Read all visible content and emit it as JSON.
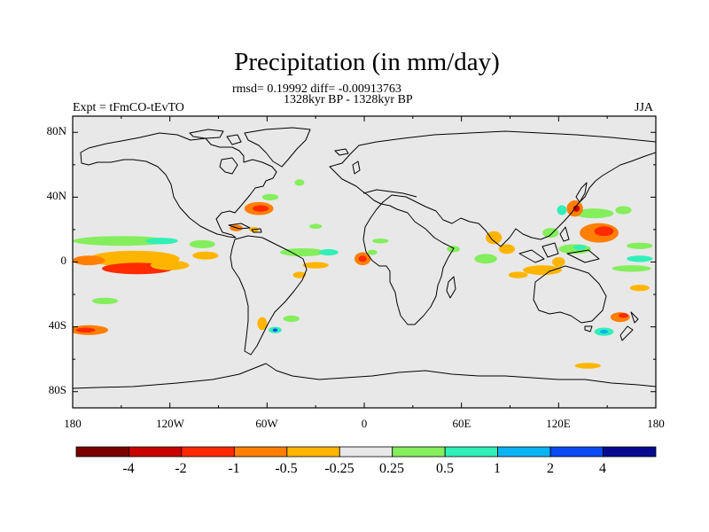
{
  "title": "Precipitation (in mm/day)",
  "stats_line": "rmsd= 0.19992 diff= -0.00913763",
  "period_line": "1328kyr BP - 1328kyr BP",
  "experiment": "Expt = tFmCO-tEvTO",
  "season": "JJA",
  "lat_ticks": [
    "80N",
    "40N",
    "0",
    "40S",
    "80S"
  ],
  "lon_ticks": [
    "180",
    "120W",
    "60W",
    "0",
    "60E",
    "120E",
    "180"
  ],
  "colorbar": {
    "colors": [
      "#7a0000",
      "#c80000",
      "#ff2a00",
      "#ff7f00",
      "#ffb500",
      "#e8e8e8",
      "#84ee5c",
      "#30f0b8",
      "#0ab4f4",
      "#0a4af4",
      "#050a90"
    ],
    "labels": [
      "-4",
      "-2",
      "-1",
      "-0.5",
      "-0.25",
      "0.25",
      "0.5",
      "1",
      "2",
      "4"
    ]
  },
  "map_data": {
    "extent": {
      "lon": [
        -180,
        180
      ],
      "lat": [
        -90,
        90
      ]
    },
    "background": "#e8e8e8",
    "anomalies": [
      {
        "name": "tropical-pacific-dry-band",
        "lon": -142,
        "lat": 2,
        "rlon": 28,
        "rlat": 5,
        "level": 4
      },
      {
        "name": "tropical-pacific-dry-core",
        "lon": -140,
        "lat": -4,
        "rlon": 22,
        "rlat": 3.5,
        "level": 2
      },
      {
        "name": "central-pacific-dry",
        "lon": -120,
        "lat": -2,
        "rlon": 12,
        "rlat": 3,
        "level": 4
      },
      {
        "name": "equatorial-pacific-dry-west",
        "lon": -170,
        "lat": 1,
        "rlon": 10,
        "rlat": 3,
        "level": 3
      },
      {
        "name": "pacific-itcz-wet",
        "lon": -150,
        "lat": 13,
        "rlon": 30,
        "rlat": 3,
        "level": 6
      },
      {
        "name": "pacific-itcz-wet-core",
        "lon": -125,
        "lat": 13,
        "rlon": 10,
        "rlat": 2,
        "level": 7
      },
      {
        "name": "pacific-itcz-wet-east",
        "lon": -100,
        "lat": 11,
        "rlon": 8,
        "rlat": 2.5,
        "level": 6
      },
      {
        "name": "east-pacific-dry",
        "lon": -98,
        "lat": 4,
        "rlon": 8,
        "rlat": 2.5,
        "level": 4
      },
      {
        "name": "gulf-stream-dry",
        "lon": -65,
        "lat": 33,
        "rlon": 9,
        "rlat": 4,
        "level": 3
      },
      {
        "name": "gulf-stream-dry-core",
        "lon": -64,
        "lat": 33,
        "rlon": 5,
        "rlat": 2,
        "level": 2
      },
      {
        "name": "gulf-stream-wet",
        "lon": -58,
        "lat": 40,
        "rlon": 5,
        "rlat": 2,
        "level": 6
      },
      {
        "name": "caribbean-dry",
        "lon": -79,
        "lat": 21,
        "rlon": 4,
        "rlat": 2,
        "level": 3
      },
      {
        "name": "caribbean-dry-2",
        "lon": -68,
        "lat": 20,
        "rlon": 3,
        "rlat": 1.6,
        "level": 4
      },
      {
        "name": "atlantic-itcz-wet",
        "lon": -38,
        "lat": 6,
        "rlon": 14,
        "rlat": 2.5,
        "level": 6
      },
      {
        "name": "atlantic-itcz-wet-east",
        "lon": -22,
        "lat": 6,
        "rlon": 6,
        "rlat": 2,
        "level": 7
      },
      {
        "name": "atlantic-dry",
        "lon": -30,
        "lat": -2,
        "rlon": 8,
        "rlat": 2,
        "level": 4
      },
      {
        "name": "gulf-of-guinea-dry",
        "lon": -1,
        "lat": 2,
        "rlon": 5,
        "rlat": 4,
        "level": 3
      },
      {
        "name": "gulf-of-guinea-dry-core",
        "lon": -1,
        "lat": 2,
        "rlon": 2.5,
        "rlat": 2,
        "level": 2
      },
      {
        "name": "gulf-of-guinea-wet",
        "lon": 5,
        "lat": 6,
        "rlon": 3,
        "rlat": 1.6,
        "level": 6
      },
      {
        "name": "south-atlantic-dry",
        "lon": -63,
        "lat": -38,
        "rlon": 3,
        "rlat": 4,
        "level": 4
      },
      {
        "name": "south-atlantic-wet",
        "lon": -55,
        "lat": -42,
        "rlon": 4,
        "rlat": 2,
        "level": 7
      },
      {
        "name": "south-atlantic-wet-core",
        "lon": -55,
        "lat": -42,
        "rlon": 1.5,
        "rlat": 1,
        "level": 9
      },
      {
        "name": "south-atlantic-wet-2",
        "lon": -45,
        "lat": -35,
        "rlon": 5,
        "rlat": 2,
        "level": 6
      },
      {
        "name": "southeast-pacific-dry",
        "lon": -170,
        "lat": -42,
        "rlon": 12,
        "rlat": 3,
        "level": 3
      },
      {
        "name": "southeast-pacific-dry-core",
        "lon": -172,
        "lat": -42,
        "rlon": 6,
        "rlat": 1.5,
        "level": 2
      },
      {
        "name": "subtropical-pacific-wet",
        "lon": -160,
        "lat": -24,
        "rlon": 8,
        "rlat": 2,
        "level": 6
      },
      {
        "name": "indian-ocean-dry",
        "lon": 80,
        "lat": 15,
        "rlon": 5,
        "rlat": 4,
        "level": 4
      },
      {
        "name": "bay-of-bengal-dry",
        "lon": 88,
        "lat": 8,
        "rlon": 5,
        "rlat": 3,
        "level": 4
      },
      {
        "name": "indian-ocean-wet",
        "lon": 75,
        "lat": 2,
        "rlon": 7,
        "rlat": 3,
        "level": 6
      },
      {
        "name": "indian-ocean-wet-2",
        "lon": 55,
        "lat": 8,
        "rlon": 4,
        "rlat": 2,
        "level": 6
      },
      {
        "name": "south-indian-dry",
        "lon": 110,
        "lat": -5,
        "rlon": 12,
        "rlat": 3,
        "level": 4
      },
      {
        "name": "south-indian-dry-2",
        "lon": 95,
        "lat": -8,
        "rlon": 6,
        "rlat": 2,
        "level": 4
      },
      {
        "name": "west-pacific-dry",
        "lon": 145,
        "lat": 18,
        "rlon": 12,
        "rlat": 6,
        "level": 3
      },
      {
        "name": "west-pacific-dry-core",
        "lon": 148,
        "lat": 19,
        "rlon": 6,
        "rlat": 3,
        "level": 2
      },
      {
        "name": "west-pacific-wet",
        "lon": 142,
        "lat": 30,
        "rlon": 12,
        "rlat": 3,
        "level": 6
      },
      {
        "name": "west-pacific-wet-2",
        "lon": 160,
        "lat": 32,
        "rlon": 5,
        "rlat": 2.5,
        "level": 6
      },
      {
        "name": "japan-dry",
        "lon": 130,
        "lat": 33,
        "rlon": 5,
        "rlat": 5,
        "level": 3
      },
      {
        "name": "japan-dry-core",
        "lon": 131,
        "lat": 33,
        "rlon": 2,
        "rlat": 2,
        "level": 1
      },
      {
        "name": "east-china-wet",
        "lon": 122,
        "lat": 32,
        "rlon": 3,
        "rlat": 3,
        "level": 7
      },
      {
        "name": "south-china-sea-wet",
        "lon": 115,
        "lat": 18,
        "rlon": 5,
        "rlat": 3,
        "level": 6
      },
      {
        "name": "maritime-wet",
        "lon": 130,
        "lat": 8,
        "rlon": 10,
        "rlat": 3,
        "level": 6
      },
      {
        "name": "maritime-wet-core",
        "lon": 133,
        "lat": 9,
        "rlon": 4,
        "rlat": 1.5,
        "level": 7
      },
      {
        "name": "maritime-dry",
        "lon": 120,
        "lat": 0,
        "rlon": 4,
        "rlat": 3,
        "level": 4
      },
      {
        "name": "tasman-dry",
        "lon": 158,
        "lat": -34,
        "rlon": 6,
        "rlat": 3,
        "level": 3
      },
      {
        "name": "tasman-dry-core",
        "lon": 160,
        "lat": -33,
        "rlon": 3,
        "rlat": 1.5,
        "level": 2
      },
      {
        "name": "tasman-wet",
        "lon": 148,
        "lat": -43,
        "rlon": 6,
        "rlat": 2.5,
        "level": 7
      },
      {
        "name": "tasman-wet-core",
        "lon": 148,
        "lat": -43,
        "rlon": 2.5,
        "rlat": 1.2,
        "level": 8
      },
      {
        "name": "southern-ocean-dry",
        "lon": 138,
        "lat": -64,
        "rlon": 8,
        "rlat": 1.8,
        "level": 4
      },
      {
        "name": "southwest-pacific-wet",
        "lon": 165,
        "lat": -4,
        "rlon": 12,
        "rlat": 2,
        "level": 6
      },
      {
        "name": "southwest-pacific-wet-2",
        "lon": 170,
        "lat": 10,
        "rlon": 8,
        "rlat": 2,
        "level": 6
      },
      {
        "name": "southwest-pacific-dry",
        "lon": 170,
        "lat": -16,
        "rlon": 6,
        "rlat": 2,
        "level": 4
      },
      {
        "name": "pacific-wet-far-east",
        "lon": 170,
        "lat": 2,
        "rlon": 8,
        "rlat": 2,
        "level": 7
      },
      {
        "name": "west-african-monsoon-wet",
        "lon": 10,
        "lat": 13,
        "rlon": 5,
        "rlat": 1.5,
        "level": 6
      },
      {
        "name": "north-atlantic-wet",
        "lon": -30,
        "lat": 22,
        "rlon": 4,
        "rlat": 1.5,
        "level": 6
      },
      {
        "name": "greenland-wet",
        "lon": -40,
        "lat": 49,
        "rlon": 3,
        "rlat": 2,
        "level": 6
      },
      {
        "name": "mid-atlantic-dry",
        "lon": -40,
        "lat": -8,
        "rlon": 4,
        "rlat": 2,
        "level": 4
      }
    ]
  }
}
